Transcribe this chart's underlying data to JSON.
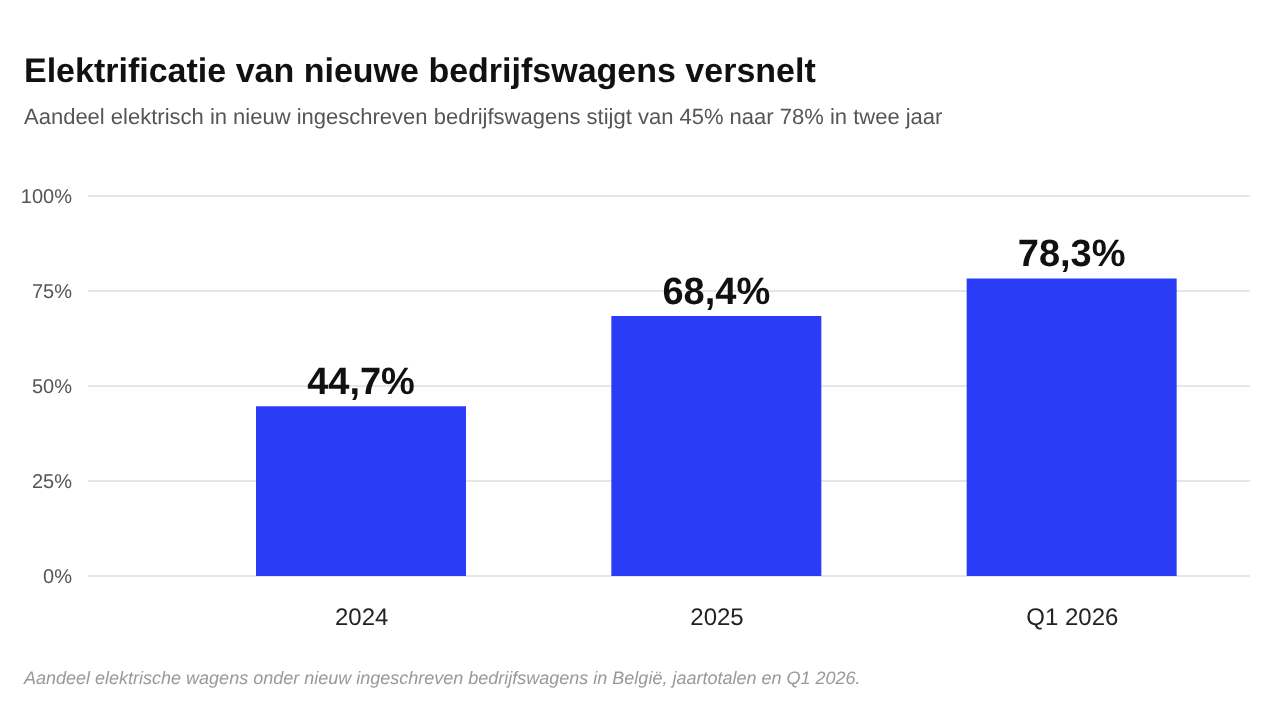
{
  "chart_data": {
    "type": "bar",
    "title": "Elektrificatie van nieuwe bedrijfswagens versnelt",
    "subtitle": "Aandeel elektrisch in nieuw ingeschreven bedrijfswagens stijgt van 45% naar 78% in twee jaar",
    "categories": [
      "2024",
      "2025",
      "Q1 2026"
    ],
    "values": [
      44.7,
      68.4,
      78.3
    ],
    "value_labels": [
      "44,7%",
      "68,4%",
      "78,3%"
    ],
    "color": "#2b3cf6",
    "ylim": [
      0,
      100
    ],
    "yticks": [
      {
        "value": 0,
        "label": "0%"
      },
      {
        "value": 25,
        "label": "25%"
      },
      {
        "value": 50,
        "label": "50%"
      },
      {
        "value": 75,
        "label": "75%"
      },
      {
        "value": 100,
        "label": "100%"
      }
    ],
    "grid": "y",
    "annotations": [
      "Aandeel elektrische wagens onder nieuw ingeschreven bedrijfswagens in België, jaartotalen en Q1 2026."
    ]
  }
}
